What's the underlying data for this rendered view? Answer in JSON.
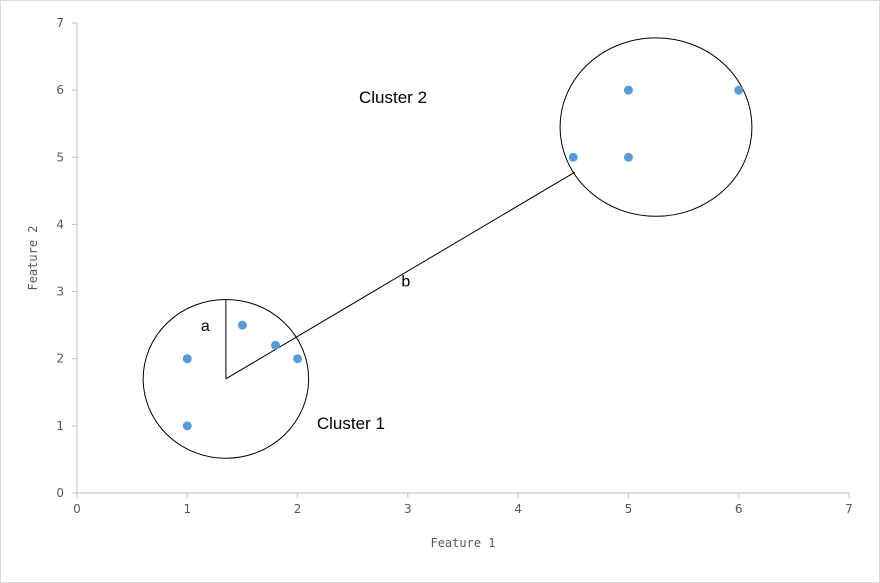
{
  "chart_data": {
    "type": "scatter",
    "title": "",
    "xlabel": "Feature 1",
    "ylabel": "Feature 2",
    "xlim": [
      0,
      7
    ],
    "ylim": [
      0,
      7
    ],
    "xticks": [
      "0",
      "1",
      "2",
      "3",
      "4",
      "5",
      "6",
      "7"
    ],
    "yticks": [
      "0",
      "1",
      "2",
      "3",
      "4",
      "5",
      "6",
      "7"
    ],
    "grid": false,
    "legend": "none",
    "marker_color": "#5b9bd5",
    "points": [
      {
        "x": 1,
        "y": 1
      },
      {
        "x": 1,
        "y": 2
      },
      {
        "x": 1.5,
        "y": 2.5
      },
      {
        "x": 1.8,
        "y": 2.2
      },
      {
        "x": 2,
        "y": 2
      },
      {
        "x": 4.5,
        "y": 5
      },
      {
        "x": 5,
        "y": 5
      },
      {
        "x": 5,
        "y": 6
      },
      {
        "x": 6,
        "y": 6
      }
    ],
    "clusters": [
      {
        "label": "Cluster 1",
        "center": [
          1.35,
          1.7
        ],
        "radius": 0.75
      },
      {
        "label": "Cluster 2",
        "center": [
          5.25,
          5.45
        ],
        "radius": 0.87
      }
    ],
    "annotations": [
      {
        "text": "a",
        "meaning": "cluster radius"
      },
      {
        "text": "b",
        "meaning": "distance between clusters"
      }
    ]
  }
}
